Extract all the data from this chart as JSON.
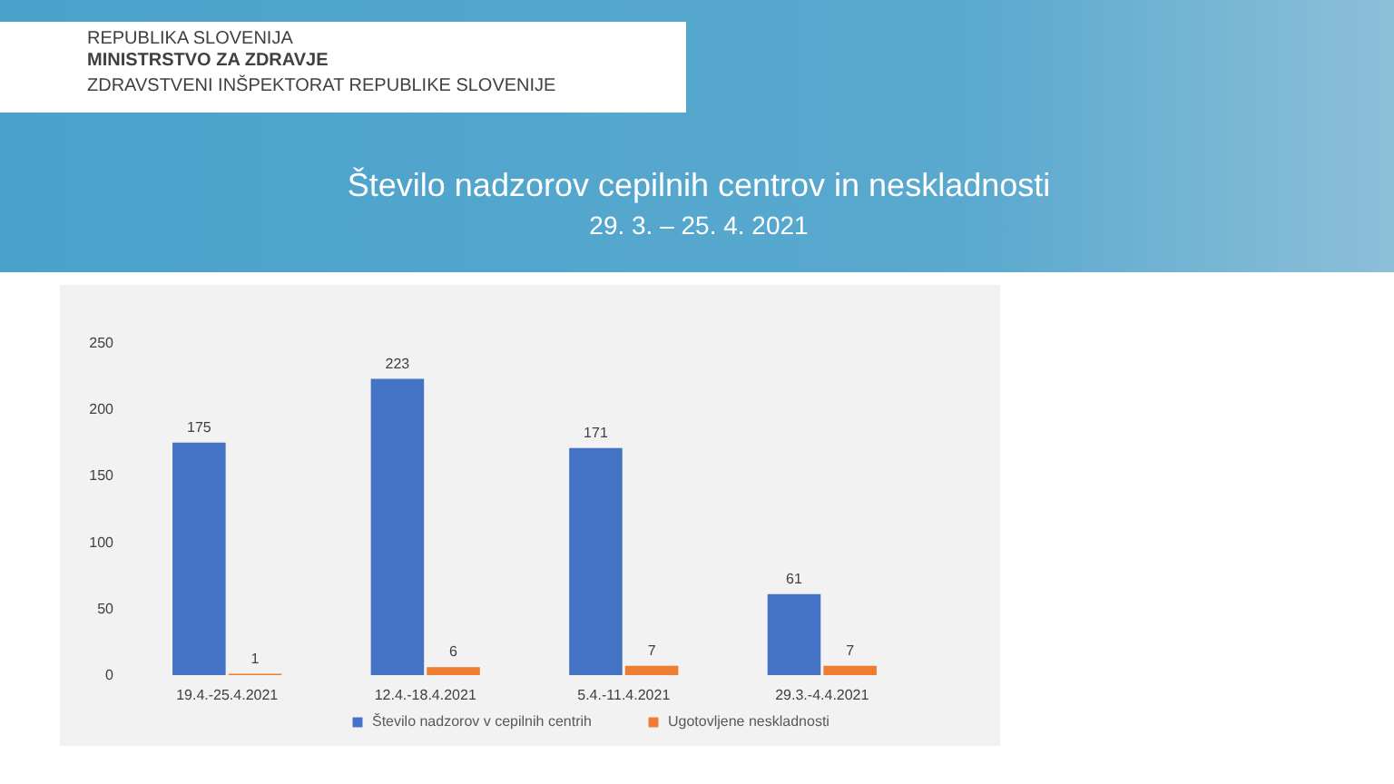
{
  "chart_data": {
    "type": "bar",
    "title": "Število nadzorov cepilnih centrov in neskladnosti",
    "subtitle": "29. 3. – 25. 4. 2021",
    "annotations": [
      "REPUBLIKA SLOVENIJA",
      "MINISTRSTVO ZA ZDRAVJE",
      "ZDRAVSTVENI INŠPEKTORAT REPUBLIKE SLOVENIJE"
    ],
    "categories": [
      "19.4.-25.4.2021",
      "12.4.-18.4.2021",
      "5.4.-11.4.2021",
      "29.3.-4.4.2021"
    ],
    "series": [
      {
        "name": "Število nadzorov v cepilnih centrih",
        "color": "#4472c4",
        "values": [
          175,
          223,
          171,
          61
        ]
      },
      {
        "name": "Ugotovljene neskladnosti",
        "color": "#ed7d31",
        "values": [
          1,
          6,
          7,
          7
        ]
      }
    ],
    "ylim": [
      0,
      250
    ],
    "yticks": [
      0,
      50,
      100,
      150,
      200,
      250
    ],
    "data_labels": true,
    "legend": "bottom"
  }
}
